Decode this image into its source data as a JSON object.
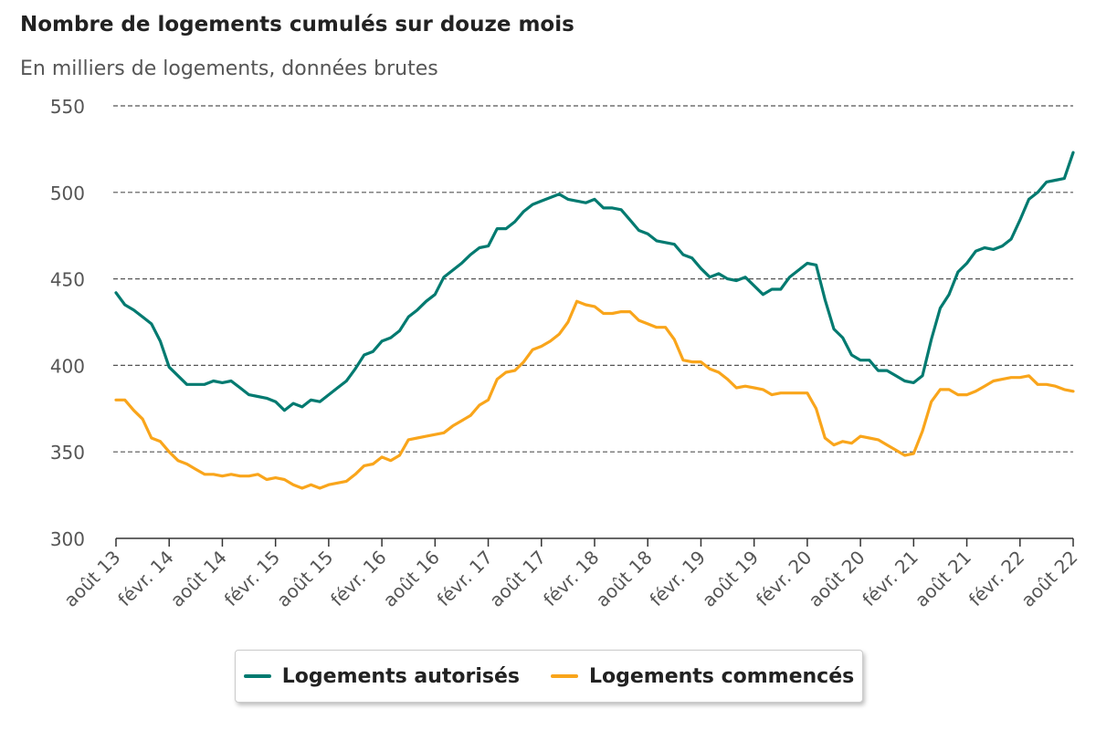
{
  "colors": {
    "autorises": "#007A70",
    "commences": "#F9A51B",
    "grid": "#555555",
    "axis_text": "#555555"
  },
  "chart_data": {
    "type": "line",
    "title": "Nombre de logements cumulés sur douze mois",
    "subtitle": "En milliers de logements, données brutes",
    "ylim": [
      300,
      550
    ],
    "yticks": [
      300,
      350,
      400,
      450,
      500,
      550
    ],
    "grid": true,
    "legend_position": "bottom",
    "x_tick_labels": [
      "août 13",
      "févr. 14",
      "août 14",
      "févr. 15",
      "août 15",
      "févr. 16",
      "août 16",
      "févr. 17",
      "août 17",
      "févr. 18",
      "août 18",
      "févr. 19",
      "août 19",
      "févr. 20",
      "août 20",
      "févr. 21",
      "août 21",
      "févr. 22",
      "août 22"
    ],
    "x_tick_months": [
      "2013-08",
      "2014-02",
      "2014-08",
      "2015-02",
      "2015-08",
      "2016-02",
      "2016-08",
      "2017-02",
      "2017-08",
      "2018-02",
      "2018-08",
      "2019-02",
      "2019-08",
      "2020-02",
      "2020-08",
      "2021-02",
      "2021-08",
      "2022-02",
      "2022-08"
    ],
    "x_months": [
      "2013-08",
      "2013-09",
      "2013-10",
      "2013-11",
      "2013-12",
      "2014-01",
      "2014-02",
      "2014-03",
      "2014-04",
      "2014-05",
      "2014-06",
      "2014-07",
      "2014-08",
      "2014-09",
      "2014-10",
      "2014-11",
      "2014-12",
      "2015-01",
      "2015-02",
      "2015-03",
      "2015-04",
      "2015-05",
      "2015-06",
      "2015-07",
      "2015-08",
      "2015-09",
      "2015-10",
      "2015-11",
      "2015-12",
      "2016-01",
      "2016-02",
      "2016-03",
      "2016-04",
      "2016-05",
      "2016-06",
      "2016-07",
      "2016-08",
      "2016-09",
      "2016-10",
      "2016-11",
      "2016-12",
      "2017-01",
      "2017-02",
      "2017-03",
      "2017-04",
      "2017-05",
      "2017-06",
      "2017-07",
      "2017-08",
      "2017-09",
      "2017-10",
      "2017-11",
      "2017-12",
      "2018-01",
      "2018-02",
      "2018-03",
      "2018-04",
      "2018-05",
      "2018-06",
      "2018-07",
      "2018-08",
      "2018-09",
      "2018-10",
      "2018-11",
      "2018-12",
      "2019-01",
      "2019-02",
      "2019-03",
      "2019-04",
      "2019-05",
      "2019-06",
      "2019-07",
      "2019-08",
      "2019-09",
      "2019-10",
      "2019-11",
      "2019-12",
      "2020-01",
      "2020-02",
      "2020-03",
      "2020-04",
      "2020-05",
      "2020-06",
      "2020-07",
      "2020-08",
      "2020-09",
      "2020-10",
      "2020-11",
      "2020-12",
      "2021-01",
      "2021-02",
      "2021-03",
      "2021-04",
      "2021-05",
      "2021-06",
      "2021-07",
      "2021-08",
      "2021-09",
      "2021-10",
      "2021-11",
      "2021-12",
      "2022-01",
      "2022-02",
      "2022-03",
      "2022-04",
      "2022-05",
      "2022-06",
      "2022-07",
      "2022-08"
    ],
    "series": [
      {
        "name": "Logements autorisés",
        "color": "#007A70",
        "values": [
          442,
          435,
          432,
          428,
          424,
          414,
          399,
          394,
          389,
          389,
          389,
          391,
          390,
          391,
          387,
          383,
          382,
          381,
          379,
          374,
          378,
          376,
          380,
          379,
          383,
          387,
          391,
          398,
          406,
          408,
          414,
          416,
          420,
          428,
          432,
          437,
          441,
          451,
          455,
          459,
          464,
          468,
          469,
          479,
          479,
          483,
          489,
          493,
          495,
          497,
          499,
          496,
          495,
          494,
          496,
          491,
          491,
          490,
          484,
          478,
          476,
          472,
          471,
          470,
          464,
          462,
          456,
          451,
          453,
          450,
          449,
          451,
          446,
          441,
          444,
          444,
          451,
          455,
          459,
          458,
          438,
          421,
          416,
          406,
          403,
          403,
          397,
          397,
          394,
          391,
          390,
          394,
          415,
          433,
          441,
          454,
          459,
          466,
          468,
          467,
          469,
          473,
          484,
          496,
          500,
          506,
          507,
          508,
          523
        ]
      },
      {
        "name": "Logements commencés",
        "color": "#F9A51B",
        "values": [
          380,
          380,
          374,
          369,
          358,
          356,
          350,
          345,
          343,
          340,
          337,
          337,
          336,
          337,
          336,
          336,
          337,
          334,
          335,
          334,
          331,
          329,
          331,
          329,
          331,
          332,
          333,
          337,
          342,
          343,
          347,
          345,
          348,
          357,
          358,
          359,
          360,
          361,
          365,
          368,
          371,
          377,
          380,
          392,
          396,
          397,
          402,
          409,
          411,
          414,
          418,
          425,
          437,
          435,
          434,
          430,
          430,
          431,
          431,
          426,
          424,
          422,
          422,
          415,
          403,
          402,
          402,
          398,
          396,
          392,
          387,
          388,
          387,
          386,
          383,
          384,
          384,
          384,
          384,
          375,
          358,
          354,
          356,
          355,
          359,
          358,
          357,
          354,
          351,
          348,
          349,
          362,
          379,
          386,
          386,
          383,
          383,
          385,
          388,
          391,
          392,
          393,
          393,
          394,
          389,
          389,
          388,
          386,
          385
        ]
      }
    ]
  }
}
